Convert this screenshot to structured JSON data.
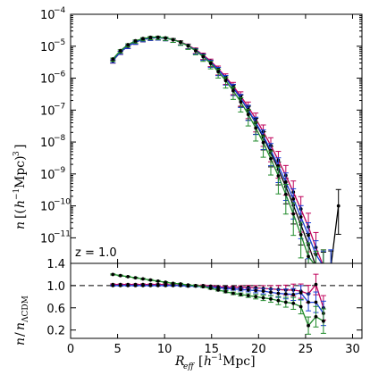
{
  "chart_data": {
    "type": "line",
    "annotation": "z = 1.0",
    "xlabel": "R_eff [h⁻¹Mpc]",
    "xlim": [
      0,
      31
    ],
    "xticks": [
      0,
      5,
      10,
      15,
      20,
      25,
      30
    ],
    "top_panel": {
      "ylabel": "n [(h⁻¹Mpc)³]",
      "yscale": "log",
      "ylim_exponent": [
        -11.8,
        -4
      ],
      "ytick_exponents": [
        -4,
        -5,
        -6,
        -7,
        -8,
        -9,
        -10,
        -11
      ],
      "ytick_base": "10",
      "series": [
        {
          "color": "#000000",
          "x": [
            4.5,
            5.3,
            6.1,
            6.9,
            7.7,
            8.5,
            9.3,
            10.1,
            10.9,
            11.7,
            12.5,
            13.3,
            14.1,
            14.9,
            15.7,
            16.5,
            17.3,
            18.1,
            18.9,
            19.7,
            20.5,
            21.3,
            22.1,
            22.9,
            23.7,
            24.5,
            25.3,
            26.1,
            26.9,
            27.7,
            28.5
          ],
          "y": [
            3.5e-06,
            6.5e-06,
            1e-05,
            1.35e-05,
            1.62e-05,
            1.8e-05,
            1.85e-05,
            1.78e-05,
            1.6e-05,
            1.35e-05,
            1.05e-05,
            7.6e-06,
            5.1e-06,
            3.2e-06,
            1.85e-06,
            1e-06,
            5e-07,
            2.3e-07,
            9.8e-08,
            3.9e-08,
            1.4e-08,
            4.6e-09,
            1.4e-09,
            4e-10,
            1.05e-10,
            2.6e-11,
            6e-12,
            1.3e-12,
            1.3e-12,
            1.3e-12,
            1e-10
          ]
        },
        {
          "color": "#c0005a",
          "x": [
            4.5,
            5.3,
            6.1,
            6.9,
            7.7,
            8.5,
            9.3,
            10.1,
            10.9,
            11.7,
            12.5,
            13.3,
            14.1,
            14.9,
            15.7,
            16.5,
            17.3,
            18.1,
            18.9,
            19.7,
            20.5,
            21.3,
            22.1,
            22.9,
            23.7,
            24.5,
            25.3,
            26.1,
            26.9
          ],
          "y": [
            3.5e-06,
            6.6e-06,
            1e-05,
            1.36e-05,
            1.63e-05,
            1.81e-05,
            1.86e-05,
            1.8e-05,
            1.62e-05,
            1.37e-05,
            1.07e-05,
            7.9e-06,
            5.35e-06,
            3.4e-06,
            2e-06,
            1.1e-06,
            5.7e-07,
            2.75e-07,
            1.25e-07,
            5.3e-08,
            2.1e-08,
            7.8e-09,
            2.7e-09,
            9e-10,
            2.7e-10,
            8e-11,
            2.2e-11,
            5e-12,
            1.3e-12
          ]
        },
        {
          "color": "#1a3fd6",
          "x": [
            4.5,
            5.3,
            6.1,
            6.9,
            7.7,
            8.5,
            9.3,
            10.1,
            10.9,
            11.7,
            12.5,
            13.3,
            14.1,
            14.9,
            15.7,
            16.5,
            17.3,
            18.1,
            18.9,
            19.7,
            20.5,
            21.3,
            22.1,
            22.9,
            23.7,
            24.5,
            25.3,
            26.1,
            26.9,
            27.7
          ],
          "y": [
            3.55e-06,
            6.6e-06,
            1e-05,
            1.36e-05,
            1.63e-05,
            1.8e-05,
            1.85e-05,
            1.78e-05,
            1.6e-05,
            1.34e-05,
            1.04e-05,
            7.5e-06,
            5e-06,
            3.15e-06,
            1.85e-06,
            1e-06,
            5.1e-07,
            2.35e-07,
            1.02e-07,
            4.1e-08,
            1.55e-08,
            5.4e-09,
            1.8e-09,
            5.6e-10,
            1.65e-10,
            4.5e-11,
            1.2e-11,
            3e-12,
            1.3e-12,
            1.3e-12
          ]
        },
        {
          "color": "#1f8a2a",
          "x": [
            4.5,
            5.3,
            6.1,
            6.9,
            7.7,
            8.5,
            9.3,
            10.1,
            10.9,
            11.7,
            12.5,
            13.3,
            14.1,
            14.9,
            15.7,
            16.5,
            17.3,
            18.1,
            18.9,
            19.7,
            20.5,
            21.3,
            22.1,
            22.9,
            23.7,
            24.5,
            25.3,
            26.1,
            26.9
          ],
          "y": [
            4e-06,
            7.3e-06,
            1.12e-05,
            1.48e-05,
            1.74e-05,
            1.9e-05,
            1.92e-05,
            1.82e-05,
            1.61e-05,
            1.33e-05,
            1.02e-05,
            7.2e-06,
            4.7e-06,
            2.9e-06,
            1.6e-06,
            8.4e-07,
            4.05e-07,
            1.8e-07,
            7.3e-08,
            2.75e-08,
            9.6e-09,
            3e-09,
            8.7e-10,
            2.3e-10,
            5.6e-11,
            1.25e-11,
            2.6e-12,
            1.3e-12,
            1.3e-12
          ]
        }
      ]
    },
    "bottom_panel": {
      "ylabel": "n/n_ΛCDM",
      "ylim": [
        0.05,
        1.4
      ],
      "yticks": [
        0.2,
        0.6,
        1.0,
        1.4
      ],
      "reference_line": 1.0,
      "series": [
        {
          "color": "#c0005a",
          "x": [
            4.5,
            5.3,
            6.1,
            6.9,
            7.7,
            8.5,
            9.3,
            10.1,
            10.9,
            11.7,
            12.5,
            13.3,
            14.1,
            14.9,
            15.7,
            16.5,
            17.3,
            18.1,
            18.9,
            19.7,
            20.5,
            21.3,
            22.1,
            22.9,
            23.7,
            24.5,
            25.3,
            26.1,
            26.9
          ],
          "y": [
            1.02,
            1.02,
            1.02,
            1.02,
            1.02,
            1.02,
            1.02,
            1.02,
            1.01,
            1.01,
            1.01,
            1.0,
            1.0,
            0.99,
            0.98,
            0.97,
            0.97,
            0.97,
            0.97,
            0.96,
            0.95,
            0.94,
            0.93,
            0.92,
            0.92,
            0.9,
            0.85,
            1.02,
            0.6
          ]
        },
        {
          "color": "#1a3fd6",
          "x": [
            4.5,
            5.3,
            6.1,
            6.9,
            7.7,
            8.5,
            9.3,
            10.1,
            10.9,
            11.7,
            12.5,
            13.3,
            14.1,
            14.9,
            15.7,
            16.5,
            17.3,
            18.1,
            18.9,
            19.7,
            20.5,
            21.3,
            22.1,
            22.9,
            23.7,
            24.5,
            25.3,
            26.1,
            26.9
          ],
          "y": [
            1.0,
            1.0,
            1.0,
            1.0,
            1.0,
            1.0,
            1.0,
            1.0,
            1.0,
            1.0,
            0.99,
            0.99,
            0.98,
            0.97,
            0.96,
            0.95,
            0.94,
            0.93,
            0.92,
            0.91,
            0.9,
            0.88,
            0.86,
            0.85,
            0.84,
            0.87,
            0.7,
            0.7,
            0.5
          ]
        },
        {
          "color": "#1f8a2a",
          "x": [
            4.5,
            5.3,
            6.1,
            6.9,
            7.7,
            8.5,
            9.3,
            10.1,
            10.9,
            11.7,
            12.5,
            13.3,
            14.1,
            14.9,
            15.7,
            16.5,
            17.3,
            18.1,
            18.9,
            19.7,
            20.5,
            21.3,
            22.1,
            22.9,
            23.7,
            24.5,
            25.3,
            26.1,
            26.9
          ],
          "y": [
            1.2,
            1.18,
            1.16,
            1.14,
            1.12,
            1.1,
            1.08,
            1.06,
            1.04,
            1.03,
            1.01,
            1.0,
            0.98,
            0.95,
            0.92,
            0.89,
            0.86,
            0.84,
            0.82,
            0.8,
            0.78,
            0.76,
            0.73,
            0.7,
            0.68,
            0.62,
            0.28,
            0.44,
            0.36
          ]
        }
      ]
    }
  }
}
